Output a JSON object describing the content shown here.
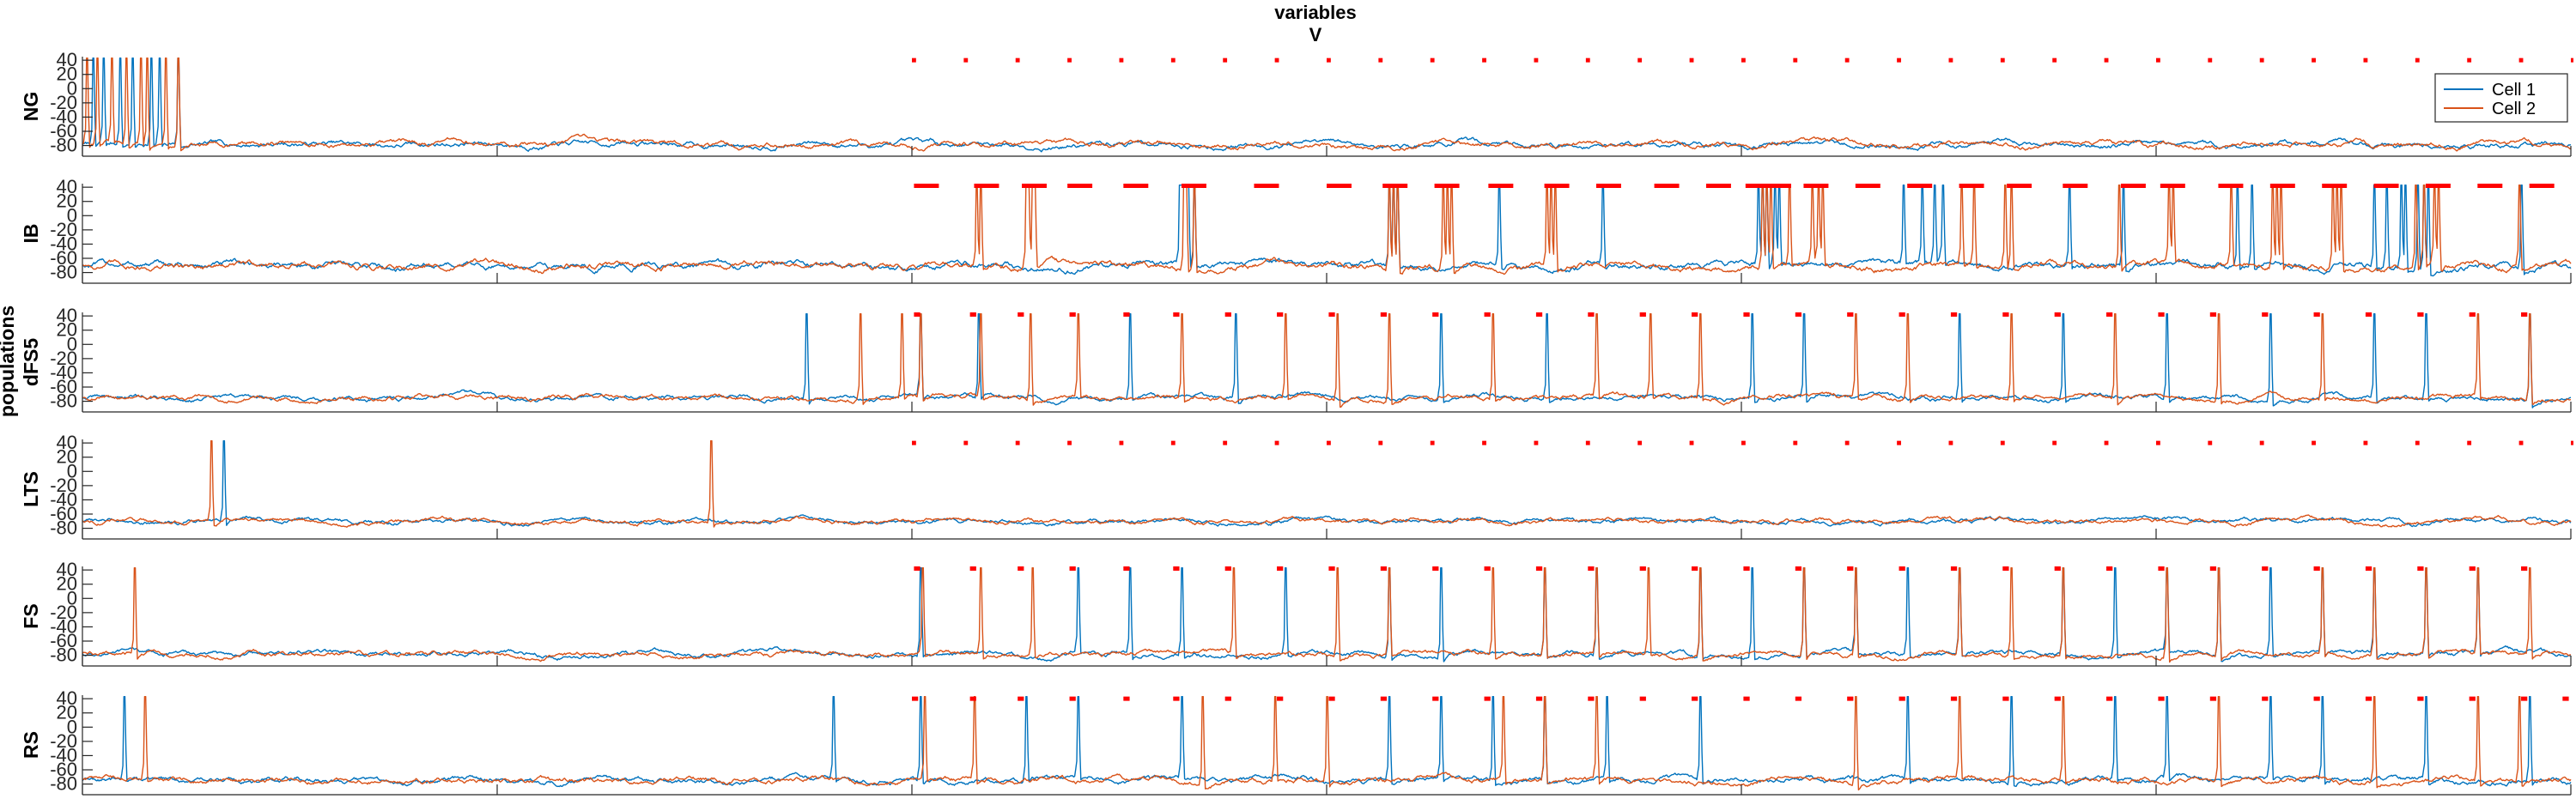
{
  "chart_data": {
    "type": "line",
    "title": "variables",
    "subtitle": "V",
    "super_ylabel": "populations",
    "xlim": [
      0,
      1200
    ],
    "x_ticks": [
      0,
      200,
      400,
      600,
      800,
      1000,
      1200
    ],
    "y_ticks": [
      40,
      20,
      0,
      -20,
      -40,
      -60,
      -80
    ],
    "ylim": [
      -95,
      45
    ],
    "grid": false,
    "legend": {
      "placement": "top-right",
      "entries": [
        "Cell 1",
        "Cell 2"
      ]
    },
    "colors": {
      "cell1": "#0072BD",
      "cell2": "#D95319",
      "markers": "#FF0000",
      "axis": "#262626"
    },
    "panels": [
      {
        "name": "NG",
        "baseline": -78,
        "noise": 2.5,
        "series": [
          {
            "name": "Cell 1",
            "spikes": [
              5,
              10,
              18,
              24,
              33,
              37,
              46
            ]
          },
          {
            "name": "Cell 2",
            "spikes": [
              2,
              7,
              14,
              21,
              28,
              31,
              40,
              46
            ]
          }
        ],
        "marker_row": {
          "y": 40,
          "starts": [
            400,
            425,
            450,
            475,
            500,
            525,
            550,
            575,
            600,
            625,
            650,
            675,
            700,
            725,
            750,
            775,
            800,
            825,
            850,
            875,
            900,
            925,
            950,
            975,
            1000,
            1025,
            1050,
            1075,
            1100,
            1125,
            1150,
            1175,
            1200
          ],
          "width": 2
        }
      },
      {
        "name": "IB",
        "baseline": -70,
        "noise": 3,
        "series": [
          {
            "name": "Cell 1",
            "spikes": [
              529,
              530,
              531,
              532,
              533,
              536,
              630,
              632,
              634,
              683,
              733,
              808,
              810,
              812,
              816,
              818,
              878,
              887,
              893,
              897,
              958,
              984,
              1039,
              1046,
              1105,
              1111,
              1118,
              1120,
              1126,
              1129,
              1131,
              1176
            ]
          },
          {
            "name": "Cell 2",
            "spikes": [
              431,
              433,
              455,
              456,
              458,
              459,
              531,
              532,
              536,
              630,
              632,
              634,
              656,
              658,
              660,
              706,
              708,
              710,
              810,
              812,
              814,
              823,
              834,
              837,
              839,
              906,
              912,
              927,
              930,
              982,
              1006,
              1008,
              1036,
              1056,
              1058,
              1060,
              1085,
              1087,
              1089,
              1125,
              1129,
              1134,
              1136,
              1175
            ]
          }
        ],
        "marker_row": {
          "y": 42,
          "starts": [
            401,
            430,
            453,
            475,
            502,
            530,
            565,
            600,
            627,
            652,
            678,
            705,
            730,
            758,
            783,
            802,
            812,
            830,
            855,
            880,
            905,
            928,
            955,
            983,
            1002,
            1030,
            1055,
            1080,
            1105,
            1130,
            1155,
            1180
          ],
          "width": 12
        }
      },
      {
        "name": "dFS5",
        "baseline": -75,
        "noise": 2.2,
        "series": [
          {
            "name": "Cell 1",
            "spikes": [
              349,
              404,
              432,
              505,
              556,
              655,
              706,
              805,
              830,
              905,
              955,
              1005,
              1055,
              1105,
              1130,
              1180
            ]
          },
          {
            "name": "Cell 2",
            "spikes": [
              375,
              395,
              404,
              433,
              457,
              480,
              530,
              580,
              605,
              630,
              680,
              730,
              756,
              780,
              855,
              880,
              930,
              980,
              1030,
              1080,
              1155,
              1180
            ]
          }
        ],
        "marker_row": {
          "y": 42,
          "starts": [
            401,
            428,
            451,
            476,
            502,
            526,
            551,
            576,
            601,
            626,
            651,
            676,
            701,
            726,
            751,
            776,
            801,
            826,
            851,
            876,
            901,
            926,
            951,
            976,
            1001,
            1026,
            1051,
            1076,
            1101,
            1126,
            1151,
            1176
          ],
          "width": 3
        }
      },
      {
        "name": "LTS",
        "baseline": -70,
        "noise": 2,
        "series": [
          {
            "name": "Cell 1",
            "spikes": [
              68
            ]
          },
          {
            "name": "Cell 2",
            "spikes": [
              62,
              303
            ]
          }
        ],
        "marker_row": {
          "y": 40,
          "starts": [
            400,
            425,
            450,
            475,
            500,
            525,
            550,
            575,
            600,
            625,
            650,
            675,
            700,
            725,
            750,
            775,
            800,
            825,
            850,
            875,
            900,
            925,
            950,
            975,
            1000,
            1025,
            1050,
            1075,
            1100,
            1125,
            1150,
            1175,
            1200
          ],
          "width": 2
        }
      },
      {
        "name": "FS",
        "baseline": -78,
        "noise": 2.2,
        "series": [
          {
            "name": "Cell 1",
            "spikes": [
              404,
              480,
              505,
              530,
              580,
              630,
              655,
              705,
              730,
              780,
              805,
              830,
              855,
              880,
              905,
              955,
              980,
              1005,
              1030,
              1055,
              1080,
              1105,
              1130,
              1155
            ]
          },
          {
            "name": "Cell 2",
            "spikes": [
              25,
              405,
              433,
              458,
              555,
              605,
              630,
              680,
              705,
              730,
              755,
              780,
              830,
              855,
              905,
              930,
              955,
              1005,
              1030,
              1080,
              1105,
              1130,
              1155,
              1180
            ]
          }
        ],
        "marker_row": {
          "y": 42,
          "starts": [
            401,
            428,
            451,
            476,
            502,
            526,
            551,
            576,
            601,
            626,
            651,
            676,
            701,
            726,
            751,
            776,
            801,
            826,
            851,
            876,
            901,
            926,
            951,
            976,
            1001,
            1026,
            1051,
            1076,
            1101,
            1126,
            1151,
            1176
          ],
          "width": 3
        }
      },
      {
        "name": "RS",
        "baseline": -75,
        "noise": 2.5,
        "series": [
          {
            "name": "Cell 1",
            "spikes": [
              20,
              362,
              404,
              455,
              480,
              530,
              630,
              655,
              680,
              705,
              735,
              780,
              880,
              930,
              980,
              1005,
              1055,
              1080,
              1130,
              1180
            ]
          },
          {
            "name": "Cell 2",
            "spikes": [
              30,
              406,
              430,
              540,
              575,
              600,
              685,
              705,
              730,
              855,
              905,
              955,
              1030,
              1105,
              1155,
              1175
            ]
          }
        ],
        "marker_row": {
          "y": 40,
          "starts": [
            400,
            428,
            451,
            476,
            502,
            526,
            551,
            576,
            601,
            626,
            651,
            676,
            701,
            726,
            751,
            776,
            801,
            826,
            851,
            876,
            901,
            926,
            951,
            976,
            1001,
            1026,
            1051,
            1076,
            1101,
            1126,
            1151,
            1176,
            1196
          ],
          "width": 3
        }
      }
    ]
  }
}
